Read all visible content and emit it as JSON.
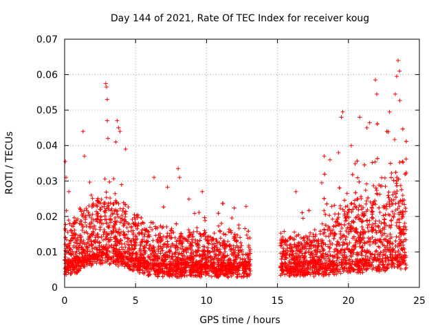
{
  "chart_data": {
    "type": "scatter",
    "title": "Day 144 of 2021, Rate Of TEC Index for receiver koug",
    "xlabel": "GPS time / hours",
    "ylabel": "ROTI / TECUs",
    "xlim": [
      0,
      25
    ],
    "ylim": [
      0,
      0.07
    ],
    "x_ticks": [
      "0",
      "5",
      "10",
      "15",
      "20",
      "25"
    ],
    "y_ticks": [
      "0",
      "0.01",
      "0.02",
      "0.03",
      "0.04",
      "0.05",
      "0.06",
      "0.07"
    ],
    "grid": true,
    "marker": "plus",
    "marker_color": "#ff0000",
    "data_gap": [
      13.1,
      15.2
    ],
    "outliers": {
      "x": [
        0.05,
        0.1,
        0.3,
        1.3,
        1.4,
        2.9,
        2.95,
        3.0,
        3.0,
        3.05,
        3.6,
        3.7,
        3.8,
        3.9,
        4.3,
        6.3,
        8.0,
        8.1,
        9.7,
        16.3,
        18.3,
        18.7,
        19.3,
        19.5,
        19.6,
        20.2,
        20.8,
        21.3,
        21.9,
        22.0,
        22.7,
        22.9,
        23.3,
        23.4,
        23.5,
        23.6
      ],
      "y": [
        0.0355,
        0.031,
        0.027,
        0.044,
        0.037,
        0.0575,
        0.0565,
        0.053,
        0.047,
        0.042,
        0.041,
        0.047,
        0.045,
        0.044,
        0.039,
        0.031,
        0.0335,
        0.031,
        0.027,
        0.027,
        0.037,
        0.036,
        0.038,
        0.048,
        0.0495,
        0.04,
        0.048,
        0.045,
        0.0585,
        0.0545,
        0.044,
        0.0495,
        0.0545,
        0.0595,
        0.064,
        0.061
      ]
    }
  }
}
